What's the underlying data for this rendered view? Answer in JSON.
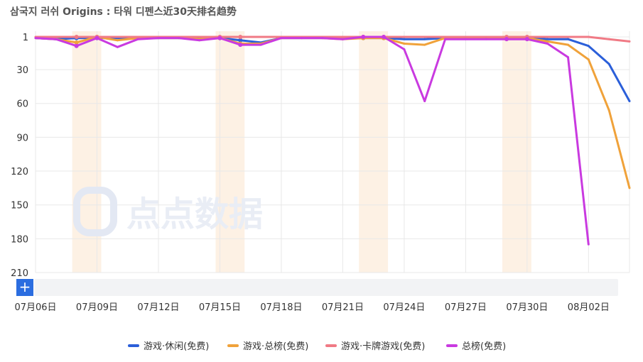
{
  "title": "삼국지 러쉬 Origins : 타워 디펜스近30天排名趋势",
  "watermark": "点点数据",
  "colors": {
    "blue": "#2b5fd9",
    "orange": "#f0a23a",
    "pink": "#f07a85",
    "magenta": "#c93ae0",
    "highlight": "#fdf1e4",
    "grid": "#e8e8e8"
  },
  "icons": {
    "add": "+"
  },
  "chart_data": {
    "type": "line",
    "title": "삼국지 러쉬 Origins : 타워 디펜스近30天排名趋势",
    "y_axis": {
      "ticks": [
        1,
        30,
        60,
        90,
        120,
        150,
        180,
        210
      ],
      "reversed": true,
      "range": [
        1,
        210
      ]
    },
    "x_ticks": [
      "07月06日",
      "07月09日",
      "07月12日",
      "07月15日",
      "07月18日",
      "07月21日",
      "07月24日",
      "07月27日",
      "07月30日",
      "08月02日"
    ],
    "x_tick_index": [
      0,
      3,
      6,
      9,
      12,
      15,
      18,
      21,
      24,
      27
    ],
    "highlight_bands": [
      [
        2,
        3
      ],
      [
        9,
        10
      ],
      [
        16,
        17
      ],
      [
        23,
        24
      ]
    ],
    "series": [
      {
        "name": "游戏·休闲(免费)",
        "color": "#2b5fd9",
        "values": [
          2,
          3,
          2,
          2,
          2,
          2,
          2,
          2,
          2,
          2,
          4,
          6,
          2,
          2,
          2,
          2,
          2,
          2,
          3,
          3,
          2,
          2,
          2,
          2,
          2,
          3,
          3,
          9,
          25,
          58
        ]
      },
      {
        "name": "游戏·总榜(免费)",
        "color": "#f0a23a",
        "values": [
          2,
          3,
          6,
          1,
          4,
          2,
          2,
          2,
          3,
          2,
          7,
          7,
          2,
          2,
          2,
          3,
          2,
          2,
          7,
          8,
          2,
          2,
          2,
          2,
          2,
          5,
          8,
          21,
          66,
          135
        ]
      },
      {
        "name": "游戏·卡牌游戏(免费)",
        "color": "#f07a85",
        "values": [
          1,
          1,
          1,
          1,
          1,
          1,
          1,
          1,
          1,
          1,
          1,
          1,
          1,
          1,
          1,
          1,
          1,
          1,
          1,
          1,
          1,
          1,
          1,
          1,
          1,
          1,
          1,
          1,
          3,
          5
        ]
      },
      {
        "name": "总榜(免费)",
        "color": "#c93ae0",
        "values": [
          2,
          3,
          9,
          2,
          10,
          3,
          2,
          2,
          4,
          2,
          8,
          8,
          2,
          2,
          2,
          3,
          1,
          1,
          12,
          58,
          3,
          3,
          3,
          3,
          3,
          7,
          19,
          185,
          null,
          null
        ]
      }
    ],
    "legend_position": "bottom",
    "grid": true
  }
}
